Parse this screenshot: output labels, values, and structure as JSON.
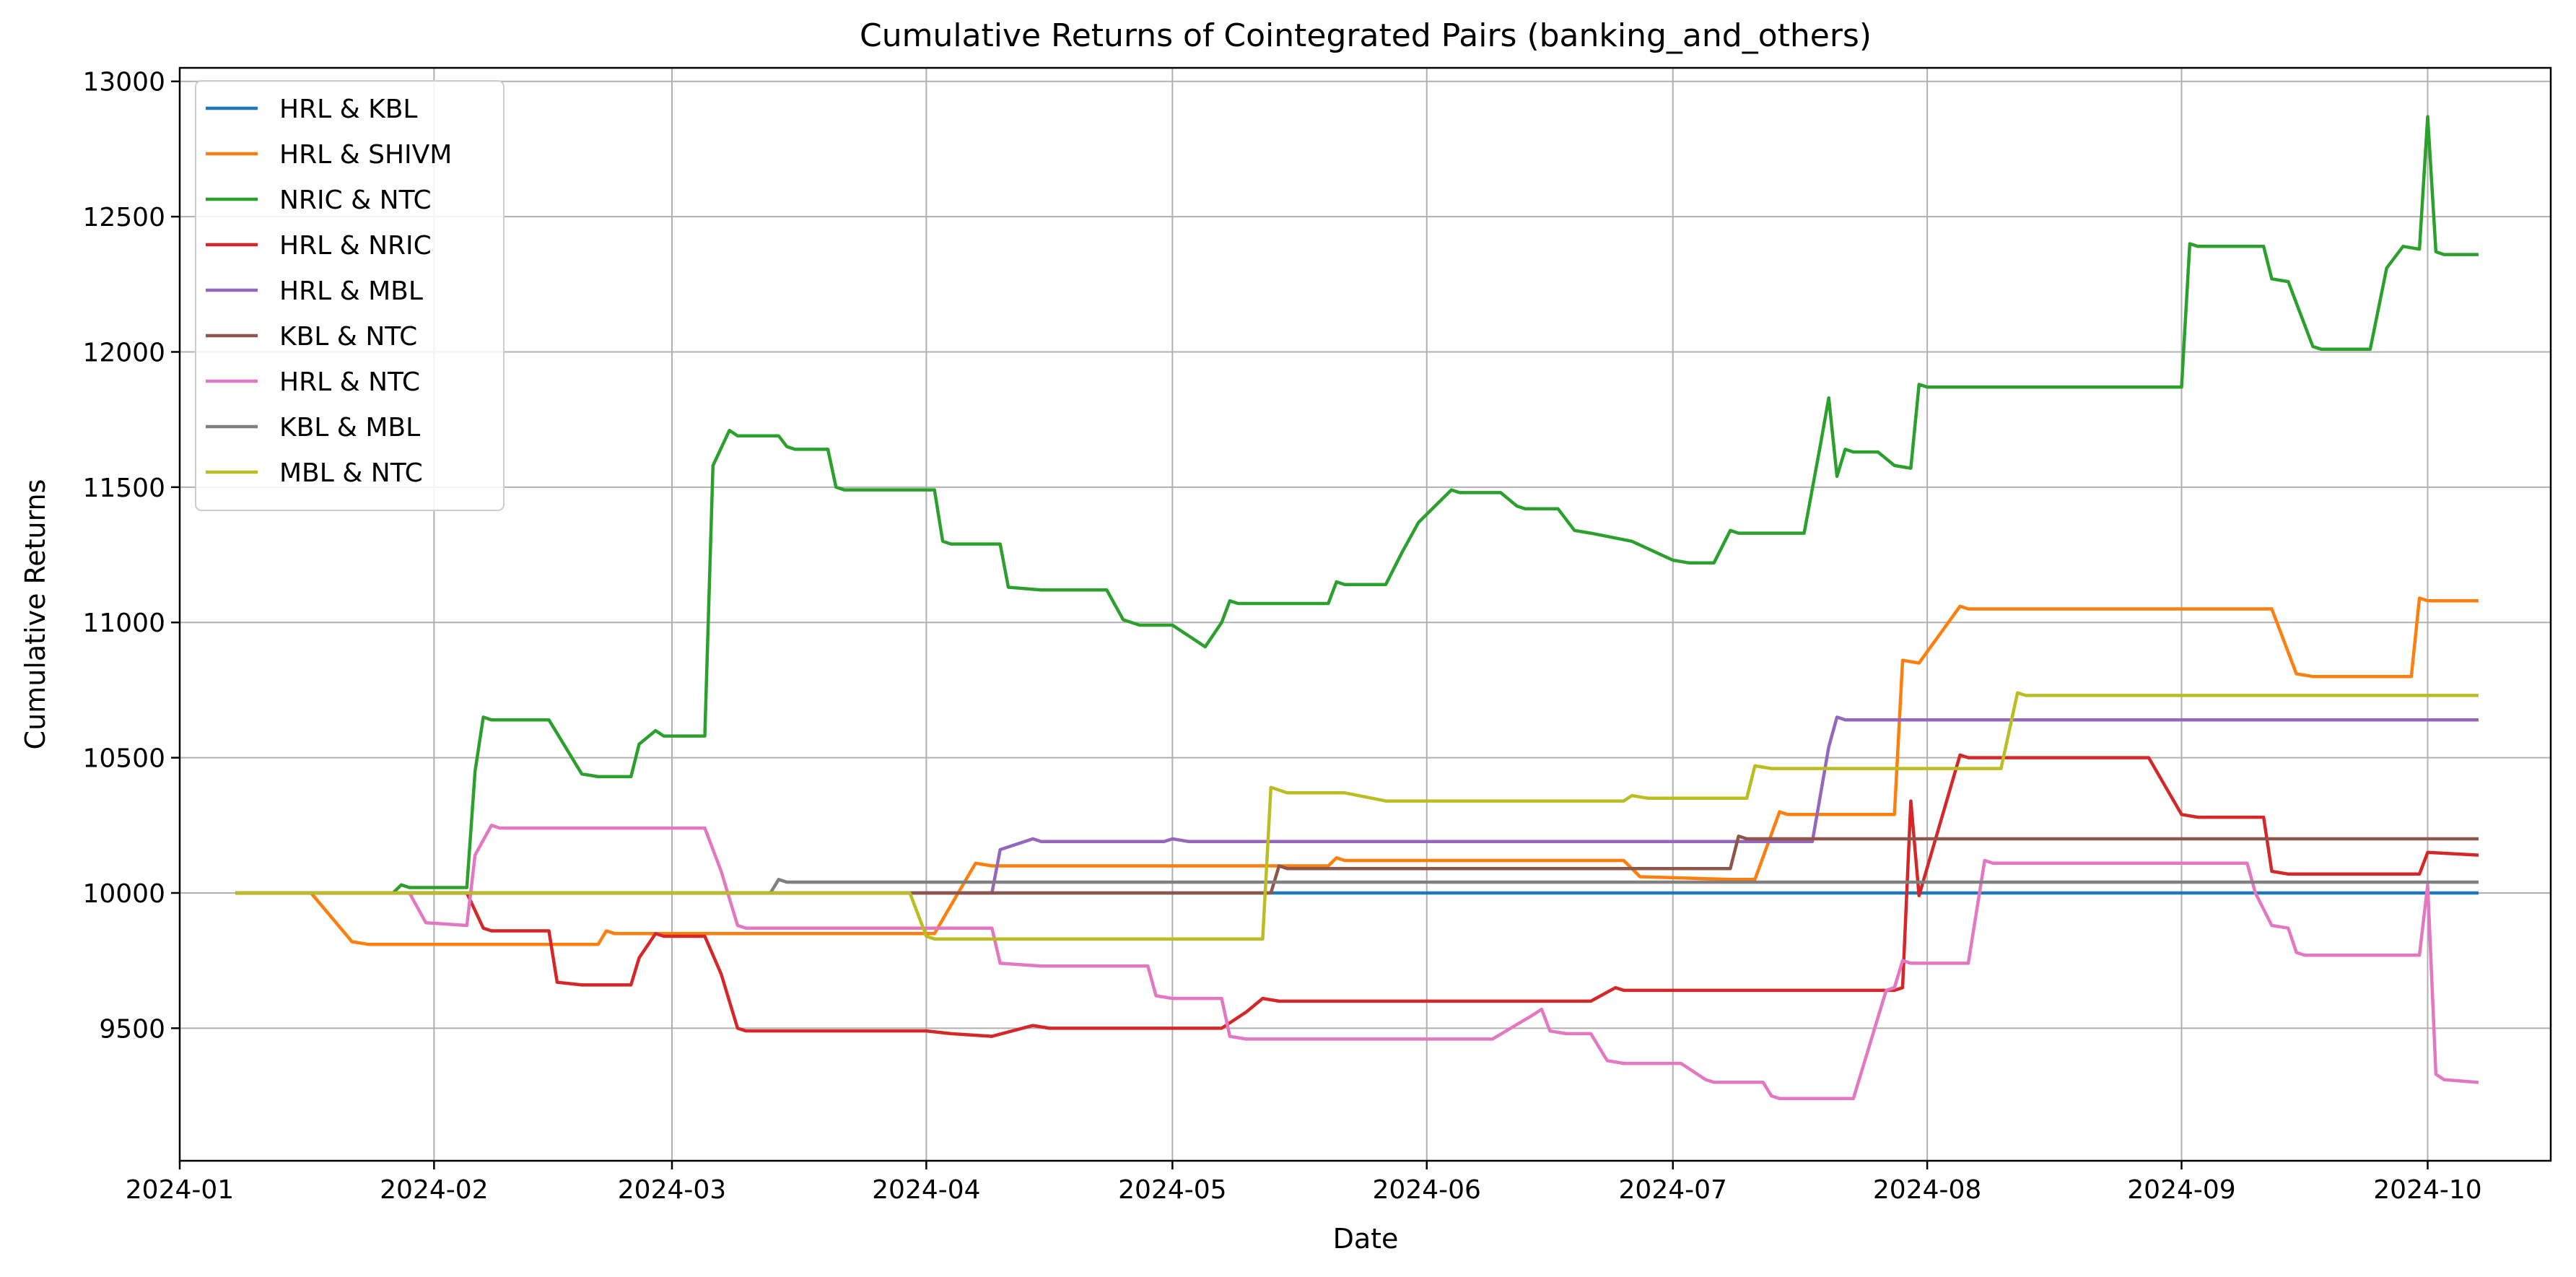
{
  "chart_data": {
    "type": "line",
    "title": "Cumulative Returns of Cointegrated Pairs (banking_and_others)",
    "xlabel": "Date",
    "ylabel": "Cumulative Returns",
    "xlim": [
      "2024-01-01",
      "2024-10-16"
    ],
    "ylim": [
      9010,
      13050
    ],
    "x_ticks": [
      "2024-01",
      "2024-02",
      "2024-03",
      "2024-04",
      "2024-05",
      "2024-06",
      "2024-07",
      "2024-08",
      "2024-09",
      "2024-10"
    ],
    "y_ticks": [
      9500,
      10000,
      10500,
      11000,
      11500,
      12000,
      12500,
      13000
    ],
    "grid": true,
    "legend_position": "top-left",
    "series": [
      {
        "name": "HRL & KBL",
        "color": "#1f77b4",
        "points": [
          [
            "2024-01-08",
            10000
          ],
          [
            "2024-05-13",
            10000
          ],
          [
            "2024-10-07",
            10000
          ]
        ]
      },
      {
        "name": "HRL & SHIVM",
        "color": "#ff7f0e",
        "points": [
          [
            "2024-01-08",
            10000
          ],
          [
            "2024-01-17",
            10000
          ],
          [
            "2024-01-22",
            9820
          ],
          [
            "2024-01-24",
            9810
          ],
          [
            "2024-02-21",
            9810
          ],
          [
            "2024-02-22",
            9860
          ],
          [
            "2024-02-23",
            9850
          ],
          [
            "2024-04-02",
            9850
          ],
          [
            "2024-04-07",
            10110
          ],
          [
            "2024-04-09",
            10100
          ],
          [
            "2024-05-13",
            10100
          ],
          [
            "2024-05-20",
            10100
          ],
          [
            "2024-05-21",
            10130
          ],
          [
            "2024-05-22",
            10120
          ],
          [
            "2024-06-25",
            10120
          ],
          [
            "2024-06-27",
            10060
          ],
          [
            "2024-07-08",
            10050
          ],
          [
            "2024-07-11",
            10050
          ],
          [
            "2024-07-14",
            10300
          ],
          [
            "2024-07-15",
            10290
          ],
          [
            "2024-07-28",
            10290
          ],
          [
            "2024-07-29",
            10860
          ],
          [
            "2024-07-31",
            10850
          ],
          [
            "2024-08-05",
            11060
          ],
          [
            "2024-08-06",
            11050
          ],
          [
            "2024-09-12",
            11050
          ],
          [
            "2024-09-15",
            10810
          ],
          [
            "2024-09-17",
            10800
          ],
          [
            "2024-09-29",
            10800
          ],
          [
            "2024-09-30",
            11090
          ],
          [
            "2024-10-01",
            11080
          ],
          [
            "2024-10-07",
            11080
          ]
        ]
      },
      {
        "name": "NRIC & NTC",
        "color": "#2ca02c",
        "points": [
          [
            "2024-01-08",
            10000
          ],
          [
            "2024-01-27",
            10000
          ],
          [
            "2024-01-28",
            10030
          ],
          [
            "2024-01-29",
            10020
          ],
          [
            "2024-02-05",
            10020
          ],
          [
            "2024-02-06",
            10450
          ],
          [
            "2024-02-07",
            10650
          ],
          [
            "2024-02-08",
            10640
          ],
          [
            "2024-02-15",
            10640
          ],
          [
            "2024-02-19",
            10440
          ],
          [
            "2024-02-21",
            10430
          ],
          [
            "2024-02-25",
            10430
          ],
          [
            "2024-02-26",
            10550
          ],
          [
            "2024-02-28",
            10600
          ],
          [
            "2024-02-29",
            10580
          ],
          [
            "2024-03-05",
            10580
          ],
          [
            "2024-03-06",
            11580
          ],
          [
            "2024-03-08",
            11710
          ],
          [
            "2024-03-09",
            11690
          ],
          [
            "2024-03-14",
            11690
          ],
          [
            "2024-03-15",
            11650
          ],
          [
            "2024-03-16",
            11640
          ],
          [
            "2024-03-20",
            11640
          ],
          [
            "2024-03-21",
            11500
          ],
          [
            "2024-03-22",
            11490
          ],
          [
            "2024-04-02",
            11490
          ],
          [
            "2024-04-03",
            11300
          ],
          [
            "2024-04-04",
            11290
          ],
          [
            "2024-04-10",
            11290
          ],
          [
            "2024-04-11",
            11130
          ],
          [
            "2024-04-15",
            11120
          ],
          [
            "2024-04-23",
            11120
          ],
          [
            "2024-04-25",
            11010
          ],
          [
            "2024-04-27",
            10990
          ],
          [
            "2024-05-01",
            10990
          ],
          [
            "2024-05-05",
            10910
          ],
          [
            "2024-05-07",
            11000
          ],
          [
            "2024-05-08",
            11080
          ],
          [
            "2024-05-09",
            11070
          ],
          [
            "2024-05-18",
            11070
          ],
          [
            "2024-05-20",
            11070
          ],
          [
            "2024-05-21",
            11150
          ],
          [
            "2024-05-22",
            11140
          ],
          [
            "2024-05-27",
            11140
          ],
          [
            "2024-05-29",
            11260
          ],
          [
            "2024-05-31",
            11370
          ],
          [
            "2024-06-02",
            11430
          ],
          [
            "2024-06-04",
            11490
          ],
          [
            "2024-06-05",
            11480
          ],
          [
            "2024-06-10",
            11480
          ],
          [
            "2024-06-12",
            11430
          ],
          [
            "2024-06-13",
            11420
          ],
          [
            "2024-06-17",
            11420
          ],
          [
            "2024-06-19",
            11340
          ],
          [
            "2024-06-21",
            11330
          ],
          [
            "2024-06-26",
            11300
          ],
          [
            "2024-07-01",
            11230
          ],
          [
            "2024-07-03",
            11220
          ],
          [
            "2024-07-06",
            11220
          ],
          [
            "2024-07-08",
            11340
          ],
          [
            "2024-07-09",
            11330
          ],
          [
            "2024-07-17",
            11330
          ],
          [
            "2024-07-19",
            11660
          ],
          [
            "2024-07-20",
            11830
          ],
          [
            "2024-07-21",
            11540
          ],
          [
            "2024-07-22",
            11640
          ],
          [
            "2024-07-23",
            11630
          ],
          [
            "2024-07-26",
            11630
          ],
          [
            "2024-07-28",
            11580
          ],
          [
            "2024-07-30",
            11570
          ],
          [
            "2024-07-31",
            11880
          ],
          [
            "2024-08-01",
            11870
          ],
          [
            "2024-09-01",
            11870
          ],
          [
            "2024-09-02",
            12400
          ],
          [
            "2024-09-03",
            12390
          ],
          [
            "2024-09-11",
            12390
          ],
          [
            "2024-09-12",
            12270
          ],
          [
            "2024-09-14",
            12260
          ],
          [
            "2024-09-17",
            12020
          ],
          [
            "2024-09-18",
            12010
          ],
          [
            "2024-09-24",
            12010
          ],
          [
            "2024-09-26",
            12310
          ],
          [
            "2024-09-28",
            12390
          ],
          [
            "2024-09-30",
            12380
          ],
          [
            "2024-10-01",
            12870
          ],
          [
            "2024-10-02",
            12370
          ],
          [
            "2024-10-03",
            12360
          ],
          [
            "2024-10-07",
            12360
          ]
        ]
      },
      {
        "name": "HRL & NRIC",
        "color": "#d62728",
        "points": [
          [
            "2024-01-08",
            10000
          ],
          [
            "2024-02-05",
            10000
          ],
          [
            "2024-02-07",
            9870
          ],
          [
            "2024-02-08",
            9860
          ],
          [
            "2024-02-15",
            9860
          ],
          [
            "2024-02-16",
            9670
          ],
          [
            "2024-02-19",
            9660
          ],
          [
            "2024-02-25",
            9660
          ],
          [
            "2024-02-26",
            9760
          ],
          [
            "2024-02-28",
            9850
          ],
          [
            "2024-02-29",
            9840
          ],
          [
            "2024-03-05",
            9840
          ],
          [
            "2024-03-07",
            9700
          ],
          [
            "2024-03-09",
            9500
          ],
          [
            "2024-03-10",
            9490
          ],
          [
            "2024-04-01",
            9490
          ],
          [
            "2024-04-04",
            9480
          ],
          [
            "2024-04-09",
            9470
          ],
          [
            "2024-04-14",
            9510
          ],
          [
            "2024-04-16",
            9500
          ],
          [
            "2024-05-07",
            9500
          ],
          [
            "2024-05-10",
            9560
          ],
          [
            "2024-05-12",
            9610
          ],
          [
            "2024-05-14",
            9600
          ],
          [
            "2024-06-21",
            9600
          ],
          [
            "2024-06-24",
            9650
          ],
          [
            "2024-06-25",
            9640
          ],
          [
            "2024-07-28",
            9640
          ],
          [
            "2024-07-29",
            9650
          ],
          [
            "2024-07-30",
            10340
          ],
          [
            "2024-07-31",
            9990
          ],
          [
            "2024-08-05",
            10510
          ],
          [
            "2024-08-06",
            10500
          ],
          [
            "2024-08-28",
            10500
          ],
          [
            "2024-09-01",
            10290
          ],
          [
            "2024-09-03",
            10280
          ],
          [
            "2024-09-11",
            10280
          ],
          [
            "2024-09-12",
            10080
          ],
          [
            "2024-09-14",
            10070
          ],
          [
            "2024-09-30",
            10070
          ],
          [
            "2024-10-01",
            10150
          ],
          [
            "2024-10-07",
            10140
          ]
        ]
      },
      {
        "name": "HRL & MBL",
        "color": "#9467bd",
        "points": [
          [
            "2024-01-08",
            10000
          ],
          [
            "2024-04-09",
            10000
          ],
          [
            "2024-04-10",
            10160
          ],
          [
            "2024-04-14",
            10200
          ],
          [
            "2024-04-15",
            10190
          ],
          [
            "2024-04-30",
            10190
          ],
          [
            "2024-05-01",
            10200
          ],
          [
            "2024-05-03",
            10190
          ],
          [
            "2024-07-18",
            10190
          ],
          [
            "2024-07-20",
            10540
          ],
          [
            "2024-07-21",
            10650
          ],
          [
            "2024-07-22",
            10640
          ],
          [
            "2024-10-07",
            10640
          ]
        ]
      },
      {
        "name": "KBL & NTC",
        "color": "#8c564b",
        "points": [
          [
            "2024-01-08",
            10000
          ],
          [
            "2024-05-13",
            10000
          ],
          [
            "2024-05-14",
            10100
          ],
          [
            "2024-05-15",
            10090
          ],
          [
            "2024-07-08",
            10090
          ],
          [
            "2024-07-09",
            10210
          ],
          [
            "2024-07-10",
            10200
          ],
          [
            "2024-10-07",
            10200
          ]
        ]
      },
      {
        "name": "HRL & NTC",
        "color": "#e377c2",
        "points": [
          [
            "2024-01-08",
            10000
          ],
          [
            "2024-01-29",
            10000
          ],
          [
            "2024-01-31",
            9890
          ],
          [
            "2024-02-05",
            9880
          ],
          [
            "2024-02-06",
            10140
          ],
          [
            "2024-02-08",
            10250
          ],
          [
            "2024-02-09",
            10240
          ],
          [
            "2024-03-05",
            10240
          ],
          [
            "2024-03-07",
            10080
          ],
          [
            "2024-03-09",
            9880
          ],
          [
            "2024-03-10",
            9870
          ],
          [
            "2024-04-09",
            9870
          ],
          [
            "2024-04-10",
            9740
          ],
          [
            "2024-04-15",
            9730
          ],
          [
            "2024-04-28",
            9730
          ],
          [
            "2024-04-29",
            9620
          ],
          [
            "2024-05-01",
            9610
          ],
          [
            "2024-05-07",
            9610
          ],
          [
            "2024-05-08",
            9470
          ],
          [
            "2024-05-10",
            9460
          ],
          [
            "2024-06-05",
            9460
          ],
          [
            "2024-06-09",
            9460
          ],
          [
            "2024-06-14",
            9550
          ],
          [
            "2024-06-15",
            9570
          ],
          [
            "2024-06-16",
            9490
          ],
          [
            "2024-06-18",
            9480
          ],
          [
            "2024-06-21",
            9480
          ],
          [
            "2024-06-23",
            9380
          ],
          [
            "2024-06-25",
            9370
          ],
          [
            "2024-06-26",
            9370
          ],
          [
            "2024-07-02",
            9370
          ],
          [
            "2024-07-05",
            9310
          ],
          [
            "2024-07-06",
            9300
          ],
          [
            "2024-07-12",
            9300
          ],
          [
            "2024-07-13",
            9250
          ],
          [
            "2024-07-14",
            9240
          ],
          [
            "2024-07-23",
            9240
          ],
          [
            "2024-07-27",
            9640
          ],
          [
            "2024-07-28",
            9650
          ],
          [
            "2024-07-29",
            9750
          ],
          [
            "2024-07-30",
            9740
          ],
          [
            "2024-08-06",
            9740
          ],
          [
            "2024-08-08",
            10120
          ],
          [
            "2024-08-09",
            10110
          ],
          [
            "2024-09-09",
            10110
          ],
          [
            "2024-09-10",
            10000
          ],
          [
            "2024-09-12",
            9880
          ],
          [
            "2024-09-14",
            9870
          ],
          [
            "2024-09-15",
            9780
          ],
          [
            "2024-09-16",
            9770
          ],
          [
            "2024-09-30",
            9770
          ],
          [
            "2024-10-01",
            10030
          ],
          [
            "2024-10-02",
            9330
          ],
          [
            "2024-10-03",
            9310
          ],
          [
            "2024-10-07",
            9300
          ]
        ]
      },
      {
        "name": "KBL & MBL",
        "color": "#7f7f7f",
        "points": [
          [
            "2024-01-08",
            10000
          ],
          [
            "2024-03-13",
            10000
          ],
          [
            "2024-03-14",
            10050
          ],
          [
            "2024-03-15",
            10040
          ],
          [
            "2024-10-07",
            10040
          ]
        ]
      },
      {
        "name": "MBL & NTC",
        "color": "#bcbd22",
        "points": [
          [
            "2024-01-08",
            10000
          ],
          [
            "2024-03-30",
            10000
          ],
          [
            "2024-04-01",
            9840
          ],
          [
            "2024-04-02",
            9830
          ],
          [
            "2024-05-12",
            9830
          ],
          [
            "2024-05-13",
            10390
          ],
          [
            "2024-05-15",
            10370
          ],
          [
            "2024-05-22",
            10370
          ],
          [
            "2024-05-27",
            10340
          ],
          [
            "2024-06-25",
            10340
          ],
          [
            "2024-06-26",
            10360
          ],
          [
            "2024-06-28",
            10350
          ],
          [
            "2024-07-10",
            10350
          ],
          [
            "2024-07-11",
            10470
          ],
          [
            "2024-07-13",
            10460
          ],
          [
            "2024-08-10",
            10460
          ],
          [
            "2024-08-12",
            10740
          ],
          [
            "2024-08-13",
            10730
          ],
          [
            "2024-10-07",
            10730
          ]
        ]
      }
    ]
  }
}
